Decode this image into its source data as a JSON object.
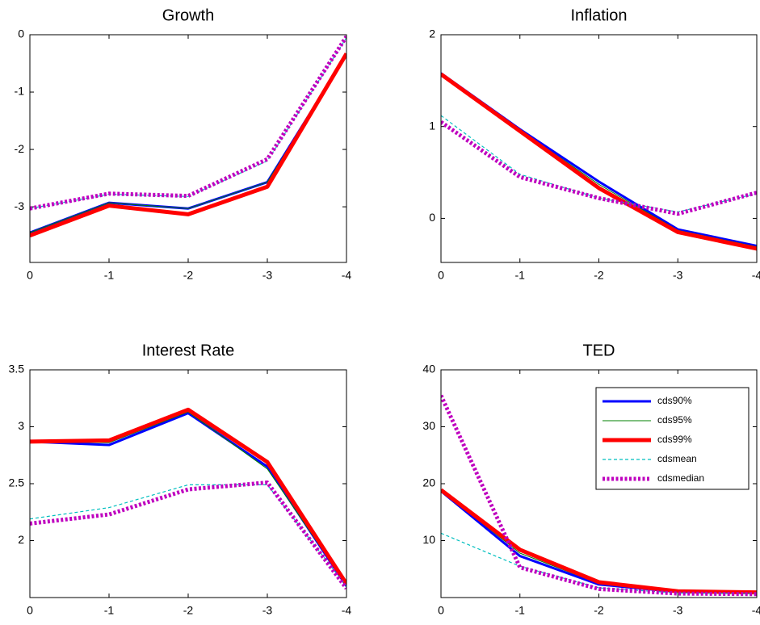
{
  "chart_data": [
    {
      "type": "line",
      "title": "Growth",
      "x": [
        0,
        -1,
        -2,
        -3,
        -4
      ],
      "xlim": [
        0,
        -4
      ],
      "xticks": [
        0,
        -1,
        -2,
        -3,
        -4
      ],
      "ylim": [
        -3.97,
        0
      ],
      "yticks": [
        -3,
        -2,
        -1,
        0
      ],
      "grid": false,
      "series": [
        {
          "name": "cds90%",
          "color": "#0000ff",
          "values": [
            -3.45,
            -2.93,
            -3.03,
            -2.57,
            -0.35
          ]
        },
        {
          "name": "cds95%",
          "color": "#008000",
          "values": [
            -3.45,
            -2.93,
            -3.03,
            -2.57,
            -0.35
          ]
        },
        {
          "name": "cds99%",
          "color": "#ff0000",
          "values": [
            -3.5,
            -2.98,
            -3.13,
            -2.65,
            -0.33
          ]
        },
        {
          "name": "cdsmean",
          "color": "#00bfbf",
          "values": [
            -3.03,
            -2.78,
            -2.82,
            -2.2,
            -0.05
          ]
        },
        {
          "name": "cdsmedian",
          "color": "#bf00bf",
          "values": [
            -3.03,
            -2.77,
            -2.81,
            -2.17,
            -0.03
          ]
        }
      ]
    },
    {
      "type": "line",
      "title": "Inflation",
      "x": [
        0,
        -1,
        -2,
        -3,
        -4
      ],
      "xlim": [
        0,
        -4
      ],
      "xticks": [
        0,
        -1,
        -2,
        -3,
        -4
      ],
      "ylim": [
        -0.48,
        2
      ],
      "yticks": [
        0,
        1,
        2
      ],
      "grid": false,
      "series": [
        {
          "name": "cds90%",
          "color": "#0000ff",
          "values": [
            1.58,
            0.97,
            0.4,
            -0.12,
            -0.3
          ]
        },
        {
          "name": "cds95%",
          "color": "#008000",
          "values": [
            1.58,
            0.96,
            0.37,
            -0.13,
            -0.31
          ]
        },
        {
          "name": "cds99%",
          "color": "#ff0000",
          "values": [
            1.57,
            0.95,
            0.33,
            -0.15,
            -0.33
          ]
        },
        {
          "name": "cdsmean",
          "color": "#00bfbf",
          "values": [
            1.12,
            0.48,
            0.22,
            0.07,
            0.27
          ]
        },
        {
          "name": "cdsmedian",
          "color": "#bf00bf",
          "values": [
            1.05,
            0.45,
            0.22,
            0.05,
            0.28
          ]
        }
      ]
    },
    {
      "type": "line",
      "title": "Interest Rate",
      "x": [
        0,
        -1,
        -2,
        -3,
        -4
      ],
      "xlim": [
        0,
        -4
      ],
      "xticks": [
        0,
        -1,
        -2,
        -3,
        -4
      ],
      "ylim": [
        1.5,
        3.5
      ],
      "yticks": [
        2,
        2.5,
        3,
        3.5
      ],
      "grid": false,
      "series": [
        {
          "name": "cds90%",
          "color": "#0000ff",
          "values": [
            2.87,
            2.84,
            3.12,
            2.65,
            1.6
          ]
        },
        {
          "name": "cds95%",
          "color": "#008000",
          "values": [
            2.87,
            2.86,
            3.13,
            2.63,
            1.61
          ]
        },
        {
          "name": "cds99%",
          "color": "#ff0000",
          "values": [
            2.87,
            2.88,
            3.15,
            2.69,
            1.62
          ]
        },
        {
          "name": "cdsmean",
          "color": "#00bfbf",
          "values": [
            2.19,
            2.29,
            2.49,
            2.49,
            1.6
          ]
        },
        {
          "name": "cdsmedian",
          "color": "#bf00bf",
          "values": [
            2.15,
            2.23,
            2.45,
            2.51,
            1.58
          ]
        }
      ]
    },
    {
      "type": "line",
      "title": "TED",
      "x": [
        0,
        -1,
        -2,
        -3,
        -4
      ],
      "xlim": [
        0,
        -4
      ],
      "xticks": [
        0,
        -1,
        -2,
        -3,
        -4
      ],
      "ylim": [
        0,
        40
      ],
      "yticks": [
        10,
        20,
        30,
        40
      ],
      "grid": false,
      "legend": "upper right",
      "series": [
        {
          "name": "cds90%",
          "color": "#0000ff",
          "values": [
            18.7,
            7.3,
            2.3,
            1,
            0.8
          ]
        },
        {
          "name": "cds95%",
          "color": "#008000",
          "values": [
            18.8,
            7.8,
            2.5,
            1.05,
            0.85
          ]
        },
        {
          "name": "cds99%",
          "color": "#ff0000",
          "values": [
            18.9,
            8.4,
            2.7,
            1.1,
            0.9
          ]
        },
        {
          "name": "cdsmean",
          "color": "#00bfbf",
          "values": [
            11.3,
            5.5,
            1.7,
            0.8,
            0.7
          ]
        },
        {
          "name": "cdsmedian",
          "color": "#bf00bf",
          "values": [
            35.5,
            5.3,
            1.5,
            0.7,
            0.6
          ]
        }
      ]
    }
  ]
}
